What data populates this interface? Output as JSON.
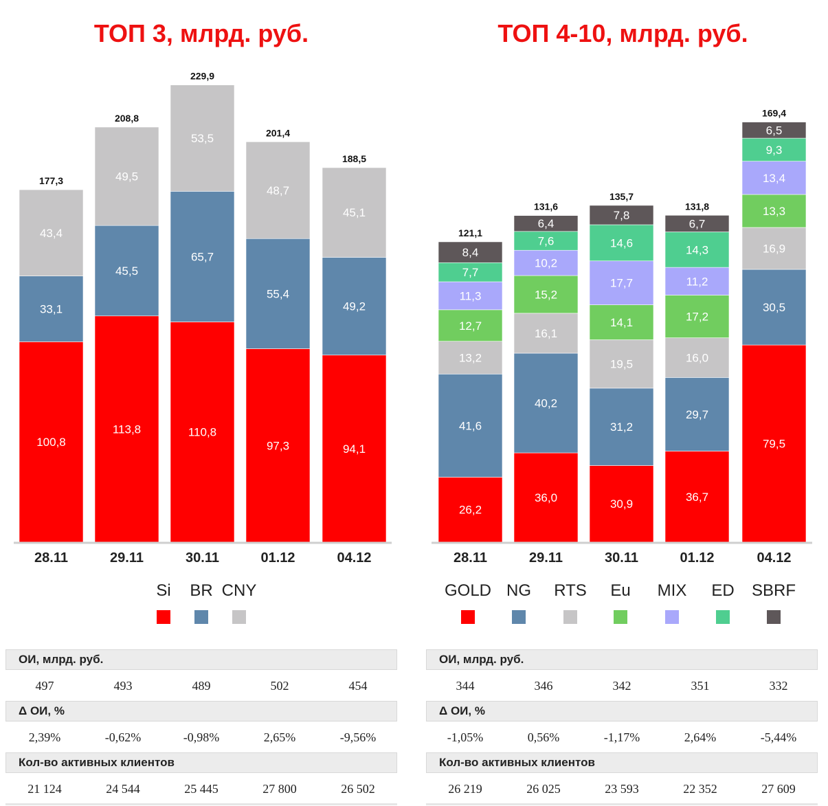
{
  "left": {
    "title": "ТОП 3, млрд. руб.",
    "legend": [
      {
        "label": "Si",
        "color": "#ff0000"
      },
      {
        "label": "BR",
        "color": "#5f87ab"
      },
      {
        "label": "CNY",
        "color": "#c6c5c6"
      }
    ],
    "table": {
      "sections": [
        {
          "header": "ОИ, млрд. руб.",
          "values": [
            "497",
            "493",
            "489",
            "502",
            "454"
          ]
        },
        {
          "header": "Δ ОИ, %",
          "values": [
            "2,39%",
            "-0,62%",
            "-0,98%",
            "2,65%",
            "-9,56%"
          ]
        },
        {
          "header": "Кол-во активных клиентов",
          "values": [
            "21 124",
            "24 544",
            "25 445",
            "27 800",
            "26 502"
          ]
        }
      ]
    }
  },
  "right": {
    "title": "ТОП 4-10, млрд. руб.",
    "legend": [
      {
        "label": "GOLD",
        "color": "#ff0000"
      },
      {
        "label": "NG",
        "color": "#5f87ab"
      },
      {
        "label": "RTS",
        "color": "#c6c5c6"
      },
      {
        "label": "Eu",
        "color": "#71cd5f"
      },
      {
        "label": "MIX",
        "color": "#a9a8fb"
      },
      {
        "label": "ED",
        "color": "#4fce90"
      },
      {
        "label": "SBRF",
        "color": "#5e5759"
      }
    ],
    "table": {
      "sections": [
        {
          "header": "ОИ, млрд. руб.",
          "values": [
            "344",
            "346",
            "342",
            "351",
            "332"
          ]
        },
        {
          "header": "Δ ОИ, %",
          "values": [
            "-1,05%",
            "0,56%",
            "-1,17%",
            "2,64%",
            "-5,44%"
          ]
        },
        {
          "header": "Кол-во активных клиентов",
          "values": [
            "26 219",
            "26 025",
            "23 593",
            "22 352",
            "27 609"
          ]
        }
      ]
    }
  },
  "chart_data": [
    {
      "type": "bar",
      "stacked": true,
      "title": "ТОП 3, млрд. руб.",
      "categories": [
        "28.11",
        "29.11",
        "30.11",
        "01.12",
        "04.12"
      ],
      "series": [
        {
          "name": "Si",
          "color": "#ff0000",
          "values": [
            100.8,
            113.8,
            110.8,
            97.3,
            94.1
          ],
          "labels": [
            "100,8",
            "113,8",
            "110,8",
            "97,3",
            "94,1"
          ]
        },
        {
          "name": "BR",
          "color": "#5f87ab",
          "values": [
            33.1,
            45.5,
            65.7,
            55.4,
            49.2
          ],
          "labels": [
            "33,1",
            "45,5",
            "65,7",
            "55,4",
            "49,2"
          ]
        },
        {
          "name": "CNY",
          "color": "#c6c5c6",
          "values": [
            43.4,
            49.5,
            53.5,
            48.7,
            45.1
          ],
          "labels": [
            "43,4",
            "49,5",
            "53,5",
            "48,7",
            "45,1"
          ]
        }
      ],
      "totals": [
        177.3,
        208.8,
        229.9,
        201.4,
        188.5
      ],
      "total_labels": [
        "177,3",
        "208,8",
        "229,9",
        "201,4",
        "188,5"
      ],
      "ylim": [
        0,
        230
      ],
      "grid": false,
      "legend_position": "bottom"
    },
    {
      "type": "bar",
      "stacked": true,
      "title": "ТОП 4-10, млрд. руб.",
      "categories": [
        "28.11",
        "29.11",
        "30.11",
        "01.12",
        "04.12"
      ],
      "series": [
        {
          "name": "GOLD",
          "color": "#ff0000",
          "values": [
            26.2,
            36.0,
            30.9,
            36.7,
            79.5
          ],
          "labels": [
            "26,2",
            "36,0",
            "30,9",
            "36,7",
            "79,5"
          ]
        },
        {
          "name": "NG",
          "color": "#5f87ab",
          "values": [
            41.6,
            40.2,
            31.2,
            29.7,
            30.5
          ],
          "labels": [
            "41,6",
            "40,2",
            "31,2",
            "29,7",
            "30,5"
          ]
        },
        {
          "name": "RTS",
          "color": "#c6c5c6",
          "values": [
            13.2,
            16.1,
            19.5,
            16.0,
            16.9
          ],
          "labels": [
            "13,2",
            "16,1",
            "19,5",
            "16,0",
            "16,9"
          ]
        },
        {
          "name": "Eu",
          "color": "#71cd5f",
          "values": [
            12.7,
            15.2,
            14.1,
            17.2,
            13.3
          ],
          "labels": [
            "12,7",
            "15,2",
            "14,1",
            "17,2",
            "13,3"
          ]
        },
        {
          "name": "MIX",
          "color": "#a9a8fb",
          "values": [
            11.3,
            10.2,
            17.7,
            11.2,
            13.4
          ],
          "labels": [
            "11,3",
            "10,2",
            "17,7",
            "11,2",
            "13,4"
          ]
        },
        {
          "name": "ED",
          "color": "#4fce90",
          "values": [
            7.7,
            7.6,
            14.6,
            14.3,
            9.3
          ],
          "labels": [
            "7,7",
            "7,6",
            "14,6",
            "14,3",
            "9,3"
          ]
        },
        {
          "name": "SBRF",
          "color": "#5e5759",
          "values": [
            8.4,
            6.4,
            7.8,
            6.7,
            6.5
          ],
          "labels": [
            "8,4",
            "6,4",
            "7,8",
            "6,7",
            "6,5"
          ]
        }
      ],
      "totals": [
        121.1,
        131.6,
        135.7,
        131.8,
        169.4
      ],
      "total_labels": [
        "121,1",
        "131,6",
        "135,7",
        "131,8",
        "169,4"
      ],
      "ylim": [
        0,
        170
      ],
      "grid": false,
      "legend_position": "bottom"
    }
  ]
}
